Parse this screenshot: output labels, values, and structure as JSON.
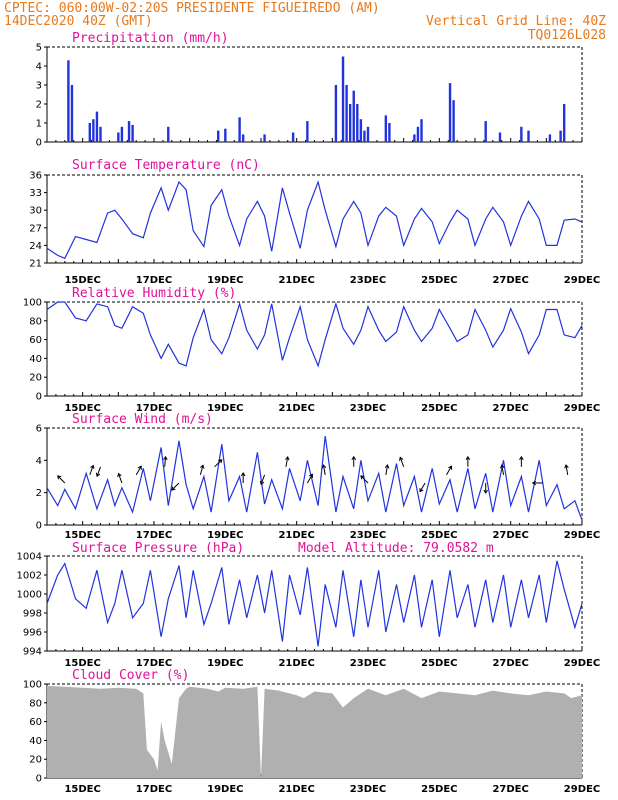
{
  "header": {
    "line1": "CPTEC:   060:00W-02:20S   PRESIDENTE FIGUEIREDO (AM)",
    "line2_left": "14DEC2020 40Z (GMT)",
    "line2_right": "Vertical Grid Line: 40Z",
    "line3_right": "TQ0126L028"
  },
  "x_labels": [
    "15DEC",
    "17DEC",
    "19DEC",
    "21DEC",
    "23DEC",
    "25DEC",
    "27DEC",
    "29DEC"
  ],
  "colors": {
    "series": "#2233dd",
    "cloud": "#b0b0b0",
    "header": "#e87a1e",
    "title": "#e0119a"
  },
  "chart_data": [
    {
      "type": "bar",
      "title": "Precipitation (mm/h)",
      "ylim": [
        0,
        5
      ],
      "yticks": [
        "0",
        "1",
        "2",
        "3",
        "4",
        "5"
      ],
      "x_days": [
        14.6,
        14.7,
        15.2,
        15.3,
        15.4,
        15.5,
        16.0,
        16.1,
        16.3,
        16.4,
        17.4,
        18.8,
        19.0,
        19.4,
        19.5,
        20.1,
        20.9,
        21.3,
        22.1,
        22.3,
        22.4,
        22.5,
        22.6,
        22.7,
        22.8,
        22.9,
        23.0,
        23.5,
        23.6,
        24.3,
        24.4,
        24.5,
        25.3,
        25.4,
        26.3,
        26.7,
        27.3,
        27.5,
        28.1,
        28.4,
        28.5
      ],
      "values": [
        4.3,
        3.0,
        1.0,
        1.2,
        1.6,
        0.8,
        0.5,
        0.8,
        1.1,
        0.9,
        0.8,
        0.6,
        0.7,
        1.3,
        0.4,
        0.4,
        0.5,
        1.1,
        3.0,
        4.5,
        3.0,
        2.0,
        2.7,
        2.0,
        1.2,
        0.6,
        0.8,
        1.4,
        1.0,
        0.4,
        0.8,
        1.2,
        3.1,
        2.2,
        1.1,
        0.5,
        0.8,
        0.6,
        0.4,
        0.6,
        2.0
      ]
    },
    {
      "type": "line",
      "title": "Surface Temperature (nC)",
      "ylim": [
        21,
        36
      ],
      "yticks": [
        "21",
        "24",
        "27",
        "30",
        "33",
        "36"
      ],
      "x": [
        14.0,
        14.3,
        14.5,
        14.8,
        15.1,
        15.4,
        15.7,
        15.9,
        16.1,
        16.4,
        16.7,
        16.9,
        17.2,
        17.4,
        17.7,
        17.9,
        18.1,
        18.4,
        18.6,
        18.9,
        19.1,
        19.4,
        19.6,
        19.9,
        20.1,
        20.3,
        20.6,
        20.8,
        21.1,
        21.3,
        21.6,
        21.8,
        22.1,
        22.3,
        22.6,
        22.8,
        23.0,
        23.3,
        23.5,
        23.8,
        24.0,
        24.3,
        24.5,
        24.8,
        25.0,
        25.3,
        25.5,
        25.8,
        26.0,
        26.3,
        26.5,
        26.8,
        27.0,
        27.3,
        27.5,
        27.8,
        28.0,
        28.3,
        28.5,
        28.8,
        29.0
      ],
      "values": [
        23.5,
        22.3,
        21.8,
        25.5,
        25.0,
        24.5,
        29.5,
        30.0,
        28.5,
        26.0,
        25.3,
        29.5,
        33.8,
        30.0,
        34.8,
        33.5,
        26.5,
        23.8,
        30.8,
        33.5,
        29.0,
        24.0,
        28.5,
        31.5,
        29.0,
        23.0,
        33.8,
        29.5,
        23.5,
        30.0,
        34.8,
        30.0,
        23.8,
        28.5,
        31.5,
        29.5,
        24.0,
        29.0,
        30.5,
        29.0,
        24.0,
        28.5,
        30.3,
        28.0,
        24.3,
        28.0,
        30.0,
        28.5,
        24.0,
        28.5,
        30.5,
        28.0,
        24.0,
        29.0,
        31.5,
        28.5,
        24.0,
        24.0,
        28.3,
        28.5,
        28.0
      ]
    },
    {
      "type": "line",
      "title": "Relative Humidity (%)",
      "ylim": [
        0,
        100
      ],
      "yticks": [
        "0",
        "20",
        "40",
        "60",
        "80",
        "100"
      ],
      "x": [
        14.0,
        14.3,
        14.5,
        14.8,
        15.1,
        15.4,
        15.7,
        15.9,
        16.1,
        16.4,
        16.7,
        16.9,
        17.2,
        17.4,
        17.7,
        17.9,
        18.1,
        18.4,
        18.6,
        18.9,
        19.1,
        19.4,
        19.6,
        19.9,
        20.1,
        20.3,
        20.6,
        20.8,
        21.1,
        21.3,
        21.6,
        21.8,
        22.1,
        22.3,
        22.6,
        22.8,
        23.0,
        23.3,
        23.5,
        23.8,
        24.0,
        24.3,
        24.5,
        24.8,
        25.0,
        25.3,
        25.5,
        25.8,
        26.0,
        26.3,
        26.5,
        26.8,
        27.0,
        27.3,
        27.5,
        27.8,
        28.0,
        28.3,
        28.5,
        28.8,
        29.0
      ],
      "values": [
        92,
        100,
        100,
        83,
        80,
        98,
        95,
        75,
        72,
        95,
        88,
        65,
        40,
        55,
        35,
        32,
        62,
        92,
        60,
        45,
        62,
        98,
        70,
        50,
        65,
        98,
        38,
        62,
        95,
        60,
        32,
        60,
        98,
        72,
        55,
        70,
        95,
        70,
        58,
        68,
        95,
        70,
        58,
        72,
        92,
        72,
        58,
        65,
        92,
        70,
        52,
        70,
        93,
        68,
        45,
        65,
        92,
        92,
        65,
        62,
        75
      ]
    },
    {
      "type": "line",
      "title": "Surface Wind (m/s)",
      "ylim": [
        0,
        6
      ],
      "yticks": [
        "0",
        "2",
        "4",
        "6"
      ],
      "x": [
        14.0,
        14.3,
        14.5,
        14.8,
        15.1,
        15.4,
        15.7,
        15.9,
        16.1,
        16.4,
        16.7,
        16.9,
        17.2,
        17.4,
        17.7,
        17.9,
        18.1,
        18.4,
        18.6,
        18.9,
        19.1,
        19.4,
        19.6,
        19.9,
        20.1,
        20.3,
        20.6,
        20.8,
        21.1,
        21.3,
        21.6,
        21.8,
        22.1,
        22.3,
        22.6,
        22.8,
        23.0,
        23.3,
        23.5,
        23.8,
        24.0,
        24.3,
        24.5,
        24.8,
        25.0,
        25.3,
        25.5,
        25.8,
        26.0,
        26.3,
        26.5,
        26.8,
        27.0,
        27.3,
        27.5,
        27.8,
        28.0,
        28.3,
        28.5,
        28.8,
        29.0
      ],
      "values": [
        2.3,
        1.2,
        2.2,
        1.0,
        3.2,
        1.0,
        2.8,
        1.2,
        2.3,
        0.8,
        3.5,
        1.5,
        4.8,
        1.2,
        5.2,
        2.5,
        1.0,
        3.0,
        0.8,
        5.0,
        1.5,
        3.0,
        0.8,
        4.5,
        1.3,
        2.8,
        1.0,
        3.5,
        1.5,
        4.0,
        1.2,
        5.5,
        0.8,
        3.0,
        1.0,
        4.0,
        1.5,
        3.2,
        0.8,
        3.8,
        1.2,
        3.0,
        0.8,
        3.5,
        1.3,
        2.8,
        0.8,
        3.5,
        1.0,
        3.2,
        0.8,
        4.0,
        1.2,
        3.0,
        0.8,
        4.0,
        1.2,
        2.5,
        1.0,
        1.5,
        0.3
      ],
      "vector_days": [
        14.5,
        15.2,
        15.5,
        16.1,
        16.5,
        17.3,
        17.7,
        18.3,
        18.7,
        19.5,
        20.1,
        20.7,
        21.3,
        21.8,
        22.6,
        23.0,
        23.5,
        24.0,
        24.6,
        25.2,
        25.8,
        26.3,
        26.8,
        27.3,
        27.9,
        28.6
      ],
      "vector_dir_deg": [
        135,
        70,
        250,
        110,
        60,
        85,
        225,
        75,
        45,
        90,
        250,
        80,
        60,
        100,
        90,
        135,
        80,
        110,
        240,
        60,
        90,
        270,
        100,
        90,
        180,
        100
      ]
    },
    {
      "type": "line",
      "title": "Surface Pressure (hPa)",
      "subtitle": "Model Altitude: 79.0582 m",
      "ylim": [
        994,
        1004
      ],
      "yticks": [
        "994",
        "996",
        "998",
        "1000",
        "1002",
        "1004"
      ],
      "x": [
        14.0,
        14.3,
        14.5,
        14.8,
        15.1,
        15.4,
        15.7,
        15.9,
        16.1,
        16.4,
        16.7,
        16.9,
        17.2,
        17.4,
        17.7,
        17.9,
        18.1,
        18.4,
        18.6,
        18.9,
        19.1,
        19.4,
        19.6,
        19.9,
        20.1,
        20.3,
        20.6,
        20.8,
        21.1,
        21.3,
        21.6,
        21.8,
        22.1,
        22.3,
        22.6,
        22.8,
        23.0,
        23.3,
        23.5,
        23.8,
        24.0,
        24.3,
        24.5,
        24.8,
        25.0,
        25.3,
        25.5,
        25.8,
        26.0,
        26.3,
        26.5,
        26.8,
        27.0,
        27.3,
        27.5,
        27.8,
        28.0,
        28.3,
        28.5,
        28.8,
        29.0
      ],
      "values": [
        999.0,
        1002.0,
        1003.2,
        999.5,
        998.5,
        1002.5,
        997.0,
        999.0,
        1002.5,
        997.5,
        999.0,
        1002.5,
        995.5,
        999.5,
        1003.0,
        997.5,
        1002.5,
        996.8,
        999.0,
        1002.8,
        996.8,
        1001.5,
        997.5,
        1002.0,
        998.0,
        1002.5,
        995.0,
        1002.0,
        997.8,
        1002.8,
        994.5,
        1001.0,
        996.5,
        1002.5,
        995.5,
        1001.5,
        996.5,
        1002.5,
        996.0,
        1001.0,
        997.0,
        1002.0,
        996.5,
        1001.5,
        995.5,
        1002.5,
        997.5,
        1001.0,
        996.5,
        1001.5,
        997.0,
        1002.0,
        996.5,
        1001.5,
        997.5,
        1002.0,
        997.0,
        1003.5,
        1000.5,
        996.5,
        999.0
      ]
    },
    {
      "type": "area",
      "title": "Cloud Cover (%)",
      "ylim": [
        0,
        100
      ],
      "yticks": [
        "0",
        "20",
        "40",
        "60",
        "80",
        "100"
      ],
      "x": [
        14.0,
        14.5,
        15.0,
        15.5,
        16.0,
        16.5,
        16.7,
        16.8,
        16.9,
        17.0,
        17.1,
        17.2,
        17.3,
        17.5,
        17.7,
        17.9,
        18.0,
        18.5,
        18.8,
        19.0,
        19.5,
        19.9,
        20.0,
        20.1,
        20.5,
        21.0,
        21.2,
        21.5,
        22.0,
        22.3,
        22.6,
        23.0,
        23.5,
        24.0,
        24.5,
        25.0,
        25.5,
        26.0,
        26.5,
        27.0,
        27.5,
        28.0,
        28.5,
        28.7,
        29.0
      ],
      "values": [
        98,
        97,
        96,
        95,
        96,
        95,
        90,
        30,
        25,
        20,
        8,
        60,
        40,
        15,
        85,
        95,
        97,
        95,
        92,
        96,
        95,
        97,
        0,
        95,
        93,
        88,
        85,
        92,
        90,
        75,
        85,
        95,
        88,
        95,
        85,
        92,
        90,
        88,
        93,
        90,
        88,
        92,
        90,
        85,
        88
      ]
    }
  ]
}
